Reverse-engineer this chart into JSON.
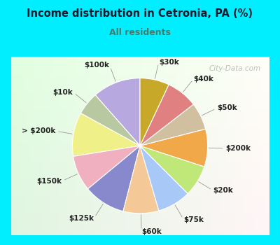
{
  "title": "Income distribution in Cetronia, PA (%)",
  "subtitle": "All residents",
  "title_color": "#1a1a2e",
  "subtitle_color": "#4a7a6a",
  "bg_outer": "#00eeff",
  "watermark": "City-Data.com",
  "labels": [
    "$100k",
    "$10k",
    "> $200k",
    "$150k",
    "$125k",
    "$60k",
    "$75k",
    "$20k",
    "$200k",
    "$50k",
    "$40k",
    "$30k"
  ],
  "values": [
    11.5,
    5.5,
    10.5,
    8.5,
    10.0,
    8.5,
    8.0,
    7.5,
    9.0,
    6.5,
    7.5,
    7.0
  ],
  "colors": [
    "#b8a8e0",
    "#b8c8a0",
    "#f0f088",
    "#f0b0c0",
    "#8888cc",
    "#f5c898",
    "#a8c8f8",
    "#c0e878",
    "#f0a848",
    "#d0c0a0",
    "#e08080",
    "#c8a828"
  ],
  "startangle": 90,
  "label_fontsize": 7.5,
  "label_color": "#222222"
}
